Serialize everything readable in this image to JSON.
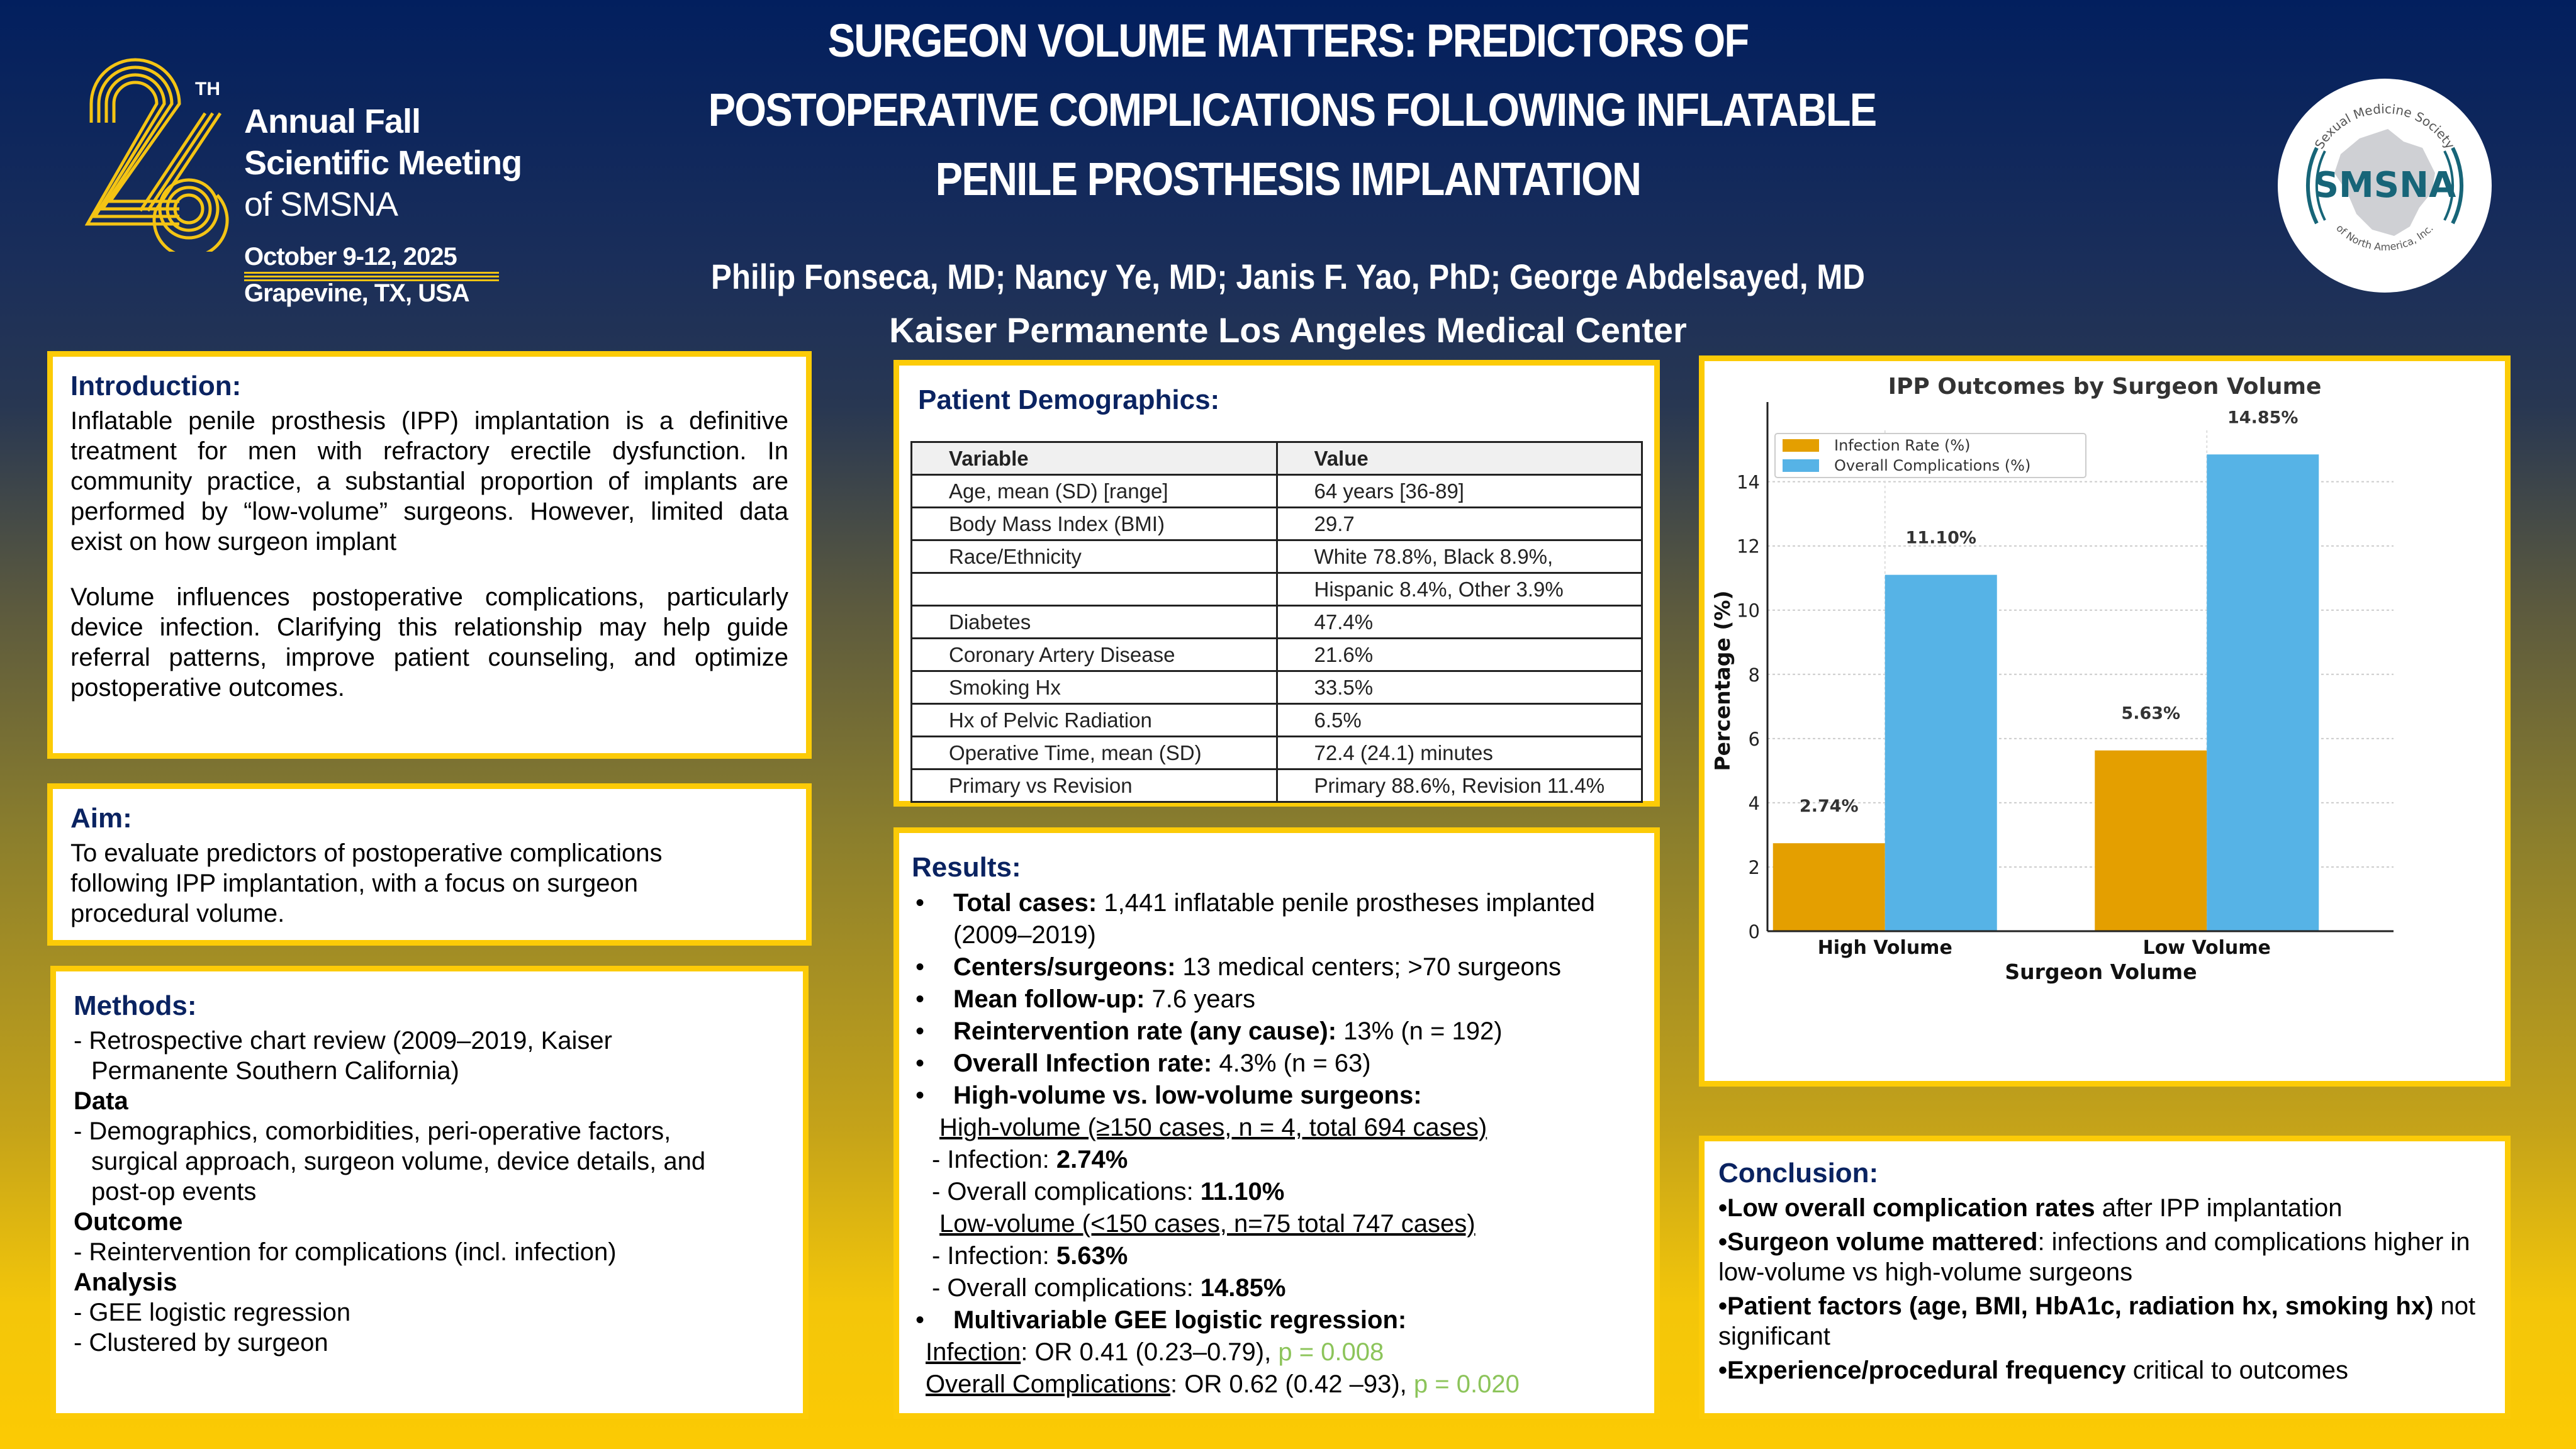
{
  "conference": {
    "ordinal_number": "26",
    "ordinal_suffix": "TH",
    "line1": "Annual Fall",
    "line2": "Scientific Meeting",
    "line3": "of SMSNA",
    "dates": "October 9-12, 2025",
    "location": "Grapevine, TX, USA"
  },
  "header": {
    "title_lines": [
      "SURGEON VOLUME MATTERS: PREDICTORS OF",
      "POSTOPERATIVE COMPLICATIONS FOLLOWING INFLATABLE",
      "PENILE PROSTHESIS IMPLANTATION"
    ],
    "authors": "Philip Fonseca, MD; Nancy Ye, MD; Janis F. Yao, PhD; George Abdelsayed, MD",
    "institution": "Kaiser Permanente Los Angeles Medical Center"
  },
  "society_logo": {
    "top_arc": "Sexual Medicine Society",
    "acronym": "SMSNA",
    "bottom_arc": "of North America, Inc.",
    "color": "#176578"
  },
  "introduction": {
    "heading": "Introduction:",
    "paragraphs": [
      "Inflatable penile prosthesis (IPP) implantation is a definitive treatment for men with refractory erectile dysfunction. In community practice, a substantial proportion of implants are performed by “low-volume” surgeons. However, limited data exist on how surgeon implant",
      "Volume influences postoperative complications, particularly device infection. Clarifying this relationship may help guide referral patterns, improve patient counseling, and optimize postoperative outcomes."
    ]
  },
  "aim": {
    "heading": "Aim:",
    "lines": [
      "To evaluate predictors of postoperative complications",
      "following IPP implantation, with a focus on surgeon",
      "procedural volume."
    ]
  },
  "methods": {
    "heading": "Methods:",
    "lines": [
      {
        "text": "- Retrospective chart review (2009–2019, Kaiser",
        "style": "normal"
      },
      {
        "text": "Permanente Southern California)",
        "style": "indent"
      },
      {
        "text": "Data",
        "style": "bold"
      },
      {
        "text": "- Demographics, comorbidities, peri-operative factors,",
        "style": "normal"
      },
      {
        "text": "surgical approach, surgeon volume, device details, and",
        "style": "indent"
      },
      {
        "text": "post-op events",
        "style": "indent"
      },
      {
        "text": "Outcome",
        "style": "bold"
      },
      {
        "text": "- Reintervention for complications (incl. infection)",
        "style": "normal"
      },
      {
        "text": "Analysis",
        "style": "bold"
      },
      {
        "text": "- GEE logistic regression",
        "style": "normal"
      },
      {
        "text": "- Clustered by surgeon",
        "style": "normal"
      }
    ]
  },
  "demographics": {
    "heading": "Patient Demographics:",
    "columns": [
      "Variable",
      "Value"
    ],
    "rows": [
      [
        "Age, mean (SD) [range]",
        "64 years [36-89]"
      ],
      [
        "Body Mass Index (BMI)",
        "29.7"
      ],
      [
        "Race/Ethnicity",
        "White 78.8%, Black 8.9%,"
      ],
      [
        "",
        "Hispanic 8.4%, Other 3.9%"
      ],
      [
        "Diabetes",
        "47.4%"
      ],
      [
        "Coronary Artery Disease",
        "21.6%"
      ],
      [
        "Smoking Hx",
        "33.5%"
      ],
      [
        "Hx of Pelvic Radiation",
        "6.5%"
      ],
      [
        "Operative Time, mean (SD)",
        "72.4 (24.1) minutes"
      ],
      [
        "Primary vs Revision",
        "Primary 88.6%, Revision 11.4%"
      ]
    ]
  },
  "results": {
    "heading": "Results:",
    "total_cases": {
      "label": "Total cases:",
      "text": " 1,441 inflatable penile prostheses implanted",
      "cont": "(2009–2019)"
    },
    "centers": {
      "label": "Centers/surgeons:",
      "text": " 13 medical centers; >70 surgeons"
    },
    "followup": {
      "label": "Mean follow-up:",
      "text": " 7.6 years"
    },
    "reintervention": {
      "label": "Reintervention rate (any cause):",
      "text": " 13% (n = 192)"
    },
    "infection": {
      "label": "Overall Infection rate:",
      "text": " 4.3% (n = 63)"
    },
    "comparison": {
      "label": "High-volume vs. low-volume surgeons:"
    },
    "high_volume": {
      "header": "High-volume (≥150 cases, n = 4, total 694 cases)",
      "infection_label": "- Infection: ",
      "infection_value": "2.74%",
      "complications_label": "- Overall complications: ",
      "complications_value": "11.10%"
    },
    "low_volume": {
      "header": "Low-volume (<150 cases, n=75  total 747 cases)",
      "infection_label": "- Infection: ",
      "infection_value": "5.63%",
      "complications_label": "- Overall complications: ",
      "complications_value": "14.85%"
    },
    "regression": {
      "label": "Multivariable GEE logistic regression:",
      "infection_label": "Infection",
      "infection_text": ": OR 0.41 (0.23–0.79), ",
      "infection_p": "p = 0.008",
      "complications_label": "Overall Complications",
      "complications_text": ": OR 0.62 (0.42 –93), ",
      "complications_p": "p = 0.020"
    },
    "bullet": "•"
  },
  "conclusion": {
    "heading": "Conclusion:",
    "items": [
      {
        "bold": "•Low overall complication rates",
        "rest": " after IPP implantation"
      },
      {
        "bold": "•Surgeon volume mattered",
        "rest": ": infections and complications higher in low-volume vs high-volume surgeons"
      },
      {
        "bold": "•Patient factors (age, BMI, HbA1c, radiation hx, smoking hx)",
        "rest": " not significant"
      },
      {
        "bold": "•Experience/procedural frequency",
        "rest": " critical to outcomes"
      }
    ]
  },
  "chart_data": {
    "type": "bar",
    "title": "IPP Outcomes by Surgeon Volume",
    "xlabel": "Surgeon Volume",
    "ylabel": "Percentage (%)",
    "categories": [
      "High Volume",
      "Low Volume"
    ],
    "series": [
      {
        "name": "Infection Rate (%)",
        "values": [
          2.74,
          5.63
        ],
        "color": "#e49f00",
        "labels": [
          "2.74%",
          "5.63%"
        ]
      },
      {
        "name": "Overall Complications (%)",
        "values": [
          11.1,
          14.85
        ],
        "color": "#56b3e6",
        "labels": [
          "11.10%",
          "14.85%"
        ]
      }
    ],
    "ylim": [
      0,
      15.6
    ],
    "yticks": [
      0,
      2,
      4,
      6,
      8,
      10,
      12,
      14
    ],
    "grid": true,
    "legend": "top-left"
  },
  "colors": {
    "heading": "#0a2361",
    "panel_border": "#fccb07",
    "logo_gold": "#f4c414",
    "p_value_green": "#8cc45a"
  }
}
